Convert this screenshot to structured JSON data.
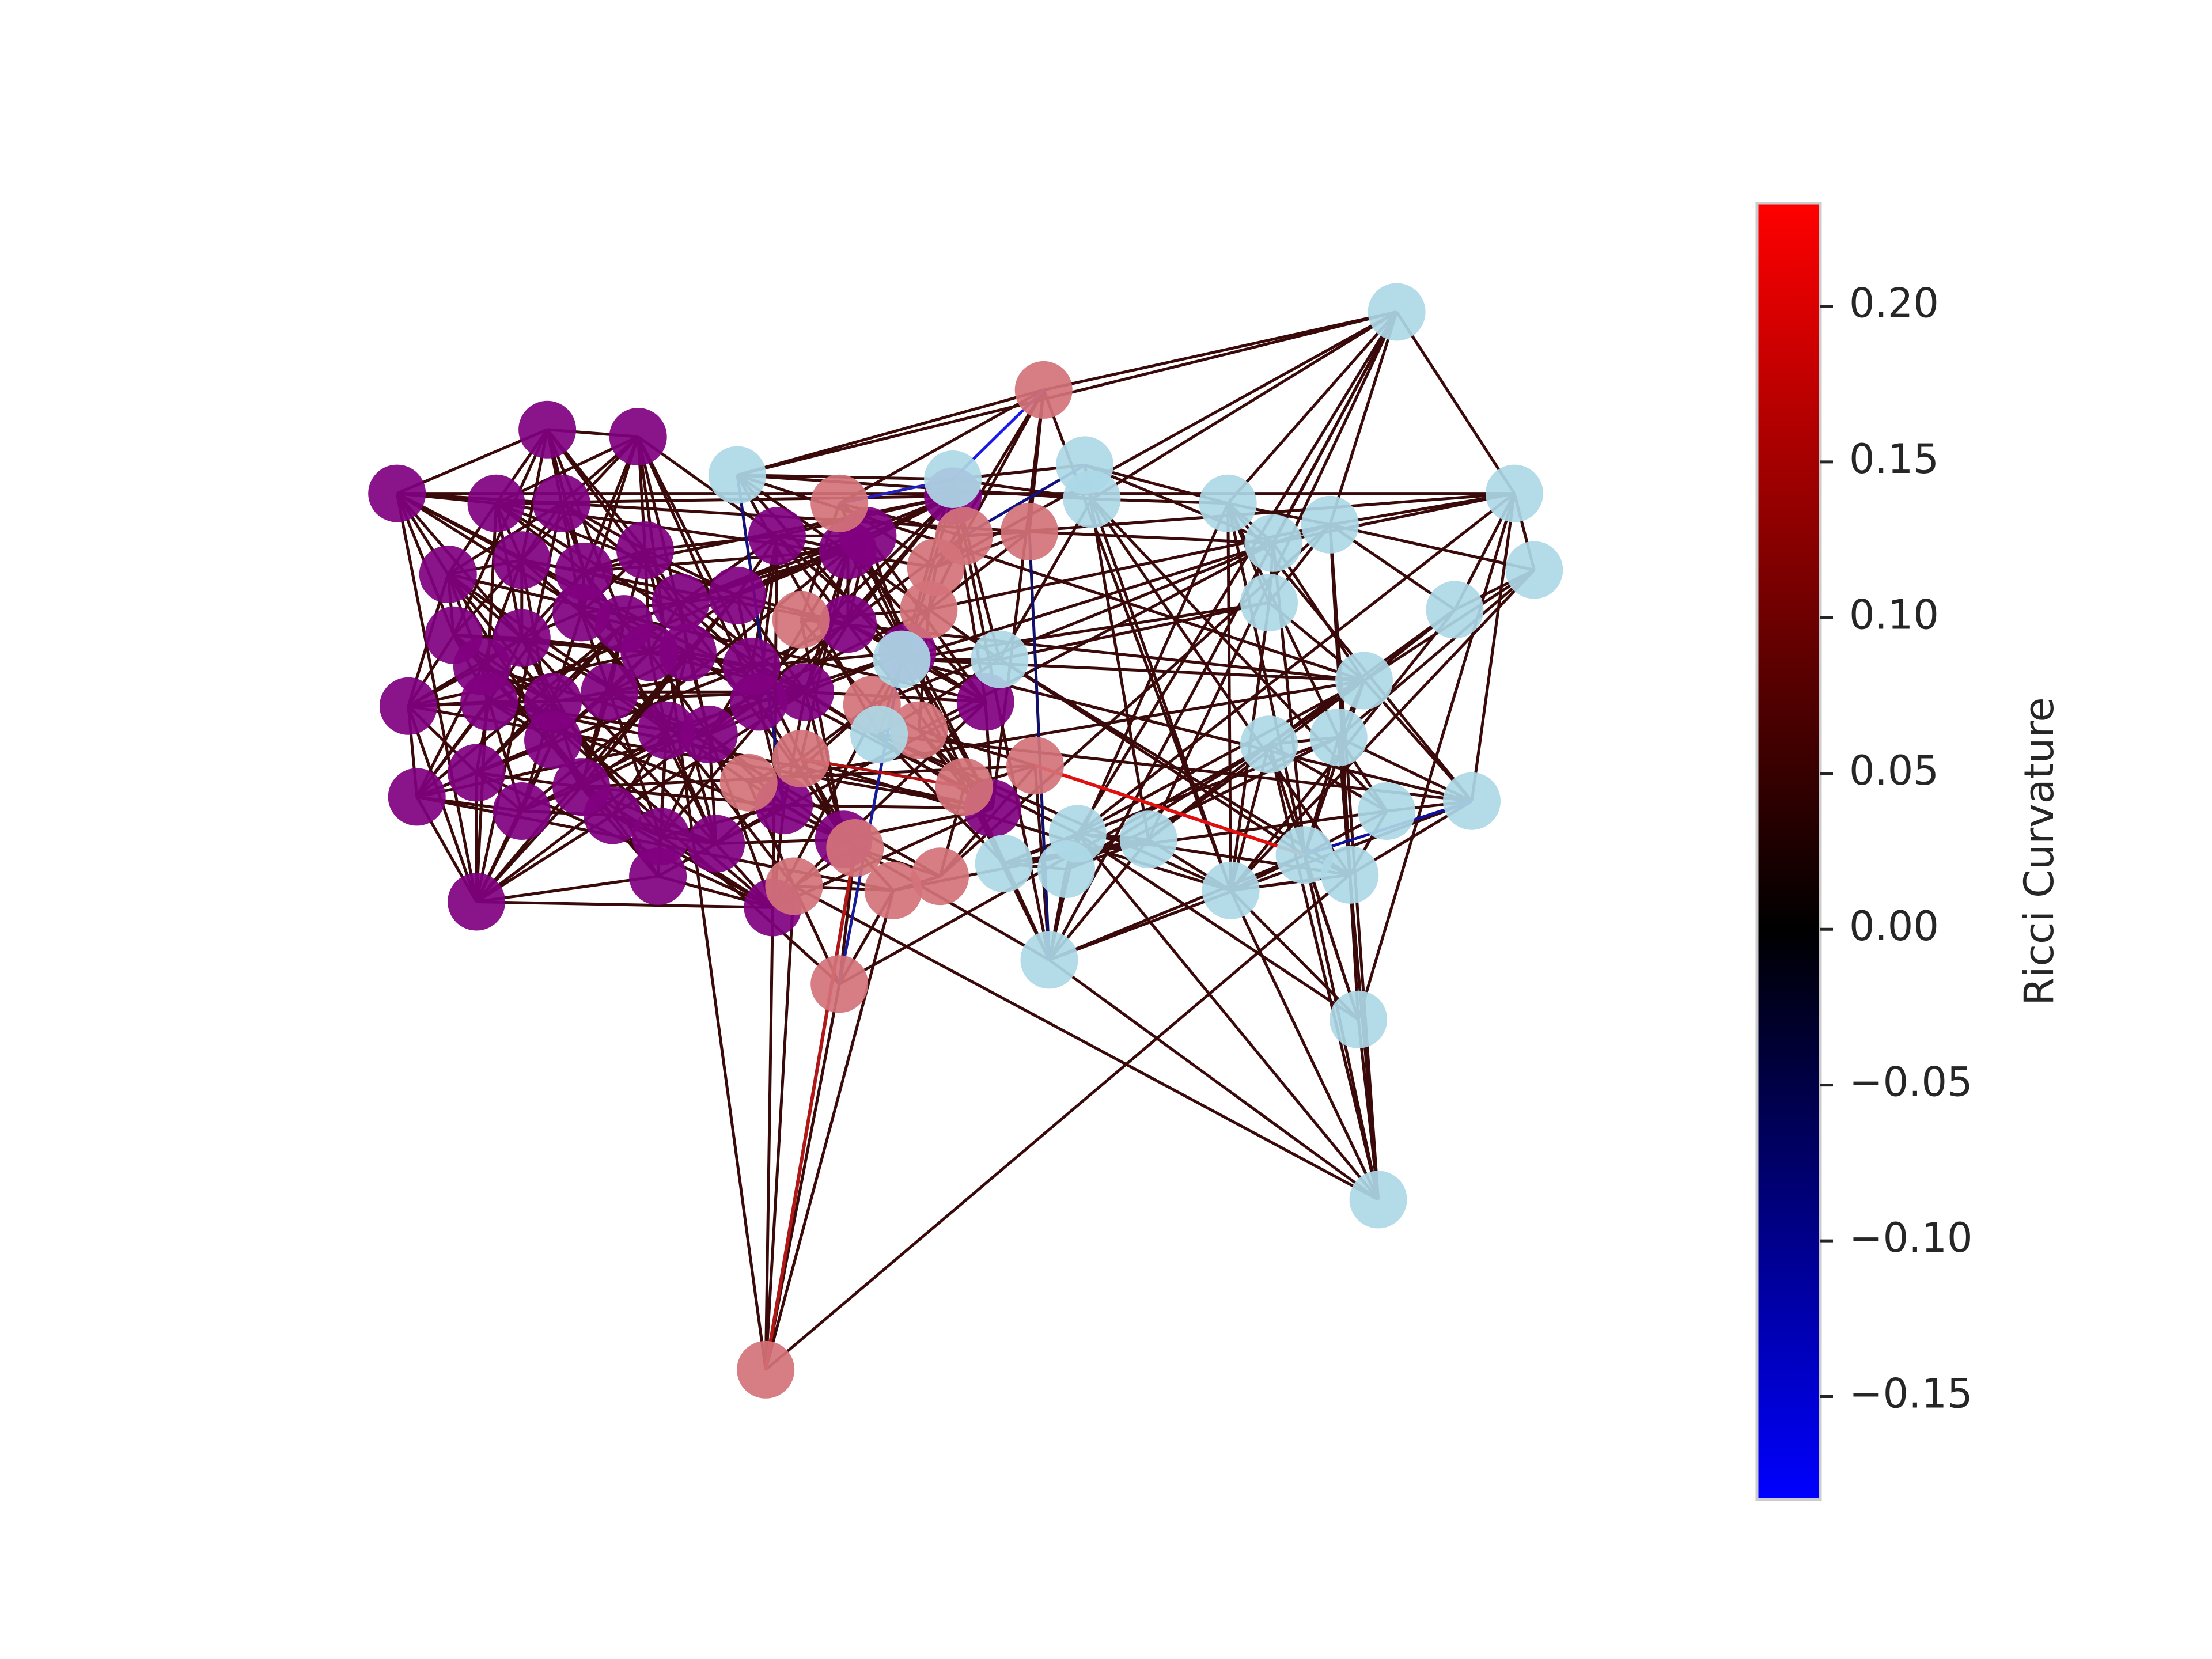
{
  "colors": {
    "group_purple": "#800080",
    "group_pink": "#D4737A",
    "group_lightblue": "#ADD8E6",
    "edge_default": "#3A0A0A",
    "cmap_low": "#0000FF",
    "cmap_mid": "#000000",
    "cmap_high": "#FF0000"
  },
  "colorbar": {
    "label": "Ricci Curvature",
    "min": -0.183,
    "max": 0.233,
    "ticks": [
      {
        "value": 0.2,
        "label": "0.20"
      },
      {
        "value": 0.15,
        "label": "0.15"
      },
      {
        "value": 0.1,
        "label": "0.10"
      },
      {
        "value": 0.05,
        "label": "0.05"
      },
      {
        "value": 0.0,
        "label": "0.00"
      },
      {
        "value": -0.05,
        "label": "−0.05"
      },
      {
        "value": -0.1,
        "label": "−0.10"
      },
      {
        "value": -0.15,
        "label": "−0.15"
      }
    ]
  }
}
